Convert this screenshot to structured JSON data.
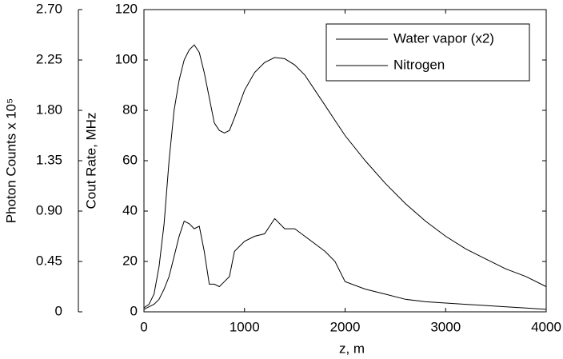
{
  "chart_data": {
    "type": "line",
    "xlabel": "z, m",
    "ylabel": "Cout Rate, MHz",
    "y2label": "Photon Counts x 10⁵",
    "x": [
      0,
      50,
      100,
      150,
      200,
      250,
      300,
      350,
      400,
      450,
      500,
      550,
      600,
      650,
      700,
      750,
      800,
      850,
      900,
      1000,
      1100,
      1200,
      1300,
      1400,
      1500,
      1600,
      1700,
      1800,
      1900,
      2000,
      2200,
      2400,
      2600,
      2800,
      3000,
      3200,
      3400,
      3600,
      3800,
      4000
    ],
    "series": [
      {
        "name": "Water vapor (x2)",
        "color": "#000000",
        "values": [
          1,
          2,
          3,
          5,
          9,
          14,
          22,
          30,
          36,
          35,
          33,
          34,
          24,
          11,
          11,
          10,
          12,
          14,
          24,
          28,
          30,
          31,
          37,
          33,
          33,
          30,
          27,
          24,
          20,
          12,
          9,
          7,
          5,
          4,
          3.5,
          3,
          2.5,
          2,
          1.5,
          1
        ]
      },
      {
        "name": "Nitrogen",
        "color": "#000000",
        "values": [
          1.6,
          3,
          7,
          18,
          35,
          60,
          80,
          92,
          100,
          104,
          106,
          103,
          95,
          85,
          75,
          72,
          71,
          72,
          77,
          88,
          95,
          99,
          101,
          100.5,
          98,
          94,
          88,
          82,
          76,
          70,
          60,
          51,
          43,
          36,
          30,
          25,
          21,
          17,
          14,
          10
        ]
      }
    ],
    "xlim": [
      0,
      4000
    ],
    "xticks": [
      0,
      1000,
      2000,
      3000,
      4000
    ],
    "ylim": [
      0,
      120
    ],
    "yticks": [
      0,
      20,
      40,
      60,
      80,
      100,
      120
    ],
    "y2lim": [
      0,
      2.7
    ],
    "y2ticks": [
      0,
      0.45,
      {
        "value": 0.9,
        "label": "0.90"
      },
      1.35,
      {
        "value": 1.8,
        "label": "1.80"
      },
      2.25,
      {
        "value": 2.7,
        "label": "2.70"
      }
    ],
    "grid": false,
    "legend": "upper right"
  }
}
